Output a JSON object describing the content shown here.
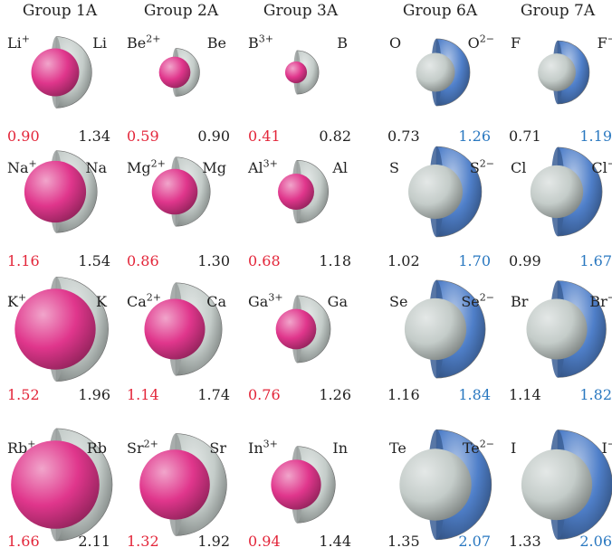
{
  "colors": {
    "cation": "#e0368c",
    "neutral": "#c4ccc9",
    "anion": "#4f7fc9",
    "cation_text": "#e3263a",
    "anion_text": "#2a78c0"
  },
  "groups": [
    {
      "header": "Group 1A",
      "kind": "cation",
      "rows": [
        {
          "ion_symbol": "Li",
          "ion_charge": "+",
          "atom": "Li",
          "ion_radius": "0.90",
          "atom_radius": "1.34"
        },
        {
          "ion_symbol": "Na",
          "ion_charge": "+",
          "atom": "Na",
          "ion_radius": "1.16",
          "atom_radius": "1.54"
        },
        {
          "ion_symbol": "K",
          "ion_charge": "+",
          "atom": "K",
          "ion_radius": "1.52",
          "atom_radius": "1.96"
        },
        {
          "ion_symbol": "Rb",
          "ion_charge": "+",
          "atom": "Rb",
          "ion_radius": "1.66",
          "atom_radius": "2.11"
        }
      ]
    },
    {
      "header": "Group 2A",
      "kind": "cation",
      "rows": [
        {
          "ion_symbol": "Be",
          "ion_charge": "2+",
          "atom": "Be",
          "ion_radius": "0.59",
          "atom_radius": "0.90"
        },
        {
          "ion_symbol": "Mg",
          "ion_charge": "2+",
          "atom": "Mg",
          "ion_radius": "0.86",
          "atom_radius": "1.30"
        },
        {
          "ion_symbol": "Ca",
          "ion_charge": "2+",
          "atom": "Ca",
          "ion_radius": "1.14",
          "atom_radius": "1.74"
        },
        {
          "ion_symbol": "Sr",
          "ion_charge": "2+",
          "atom": "Sr",
          "ion_radius": "1.32",
          "atom_radius": "1.92"
        }
      ]
    },
    {
      "header": "Group 3A",
      "kind": "cation",
      "rows": [
        {
          "ion_symbol": "B",
          "ion_charge": "3+",
          "atom": "B",
          "ion_radius": "0.41",
          "atom_radius": "0.82"
        },
        {
          "ion_symbol": "Al",
          "ion_charge": "3+",
          "atom": "Al",
          "ion_radius": "0.68",
          "atom_radius": "1.18"
        },
        {
          "ion_symbol": "Ga",
          "ion_charge": "3+",
          "atom": "Ga",
          "ion_radius": "0.76",
          "atom_radius": "1.26"
        },
        {
          "ion_symbol": "In",
          "ion_charge": "3+",
          "atom": "In",
          "ion_radius": "0.94",
          "atom_radius": "1.44"
        }
      ]
    },
    {
      "header": "Group 6A",
      "kind": "anion",
      "rows": [
        {
          "ion_symbol": "O",
          "ion_charge": "2−",
          "atom": "O",
          "ion_radius": "1.26",
          "atom_radius": "0.73"
        },
        {
          "ion_symbol": "S",
          "ion_charge": "2−",
          "atom": "S",
          "ion_radius": "1.70",
          "atom_radius": "1.02"
        },
        {
          "ion_symbol": "Se",
          "ion_charge": "2−",
          "atom": "Se",
          "ion_radius": "1.84",
          "atom_radius": "1.16"
        },
        {
          "ion_symbol": "Te",
          "ion_charge": "2−",
          "atom": "Te",
          "ion_radius": "2.07",
          "atom_radius": "1.35"
        }
      ]
    },
    {
      "header": "Group 7A",
      "kind": "anion",
      "rows": [
        {
          "ion_symbol": "F",
          "ion_charge": "−",
          "atom": "F",
          "ion_radius": "1.19",
          "atom_radius": "0.71"
        },
        {
          "ion_symbol": "Cl",
          "ion_charge": "−",
          "atom": "Cl",
          "ion_radius": "1.67",
          "atom_radius": "0.99"
        },
        {
          "ion_symbol": "Br",
          "ion_charge": "−",
          "atom": "Br",
          "ion_radius": "1.82",
          "atom_radius": "1.14"
        },
        {
          "ion_symbol": "I",
          "ion_charge": "−",
          "atom": "I",
          "ion_radius": "2.06",
          "atom_radius": "1.33"
        }
      ]
    }
  ]
}
